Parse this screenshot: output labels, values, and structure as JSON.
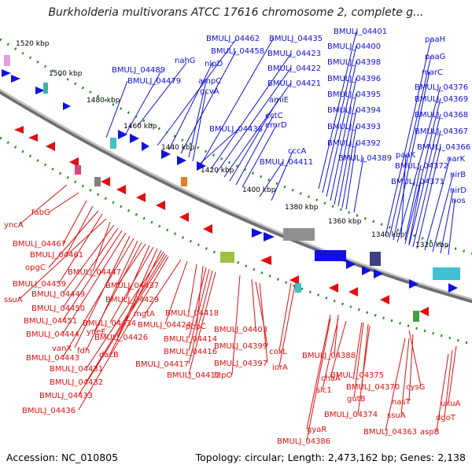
{
  "title": "Burkholderia multivorans ATCC 17616 chromosome 2, complete g...",
  "accession": "Accession: NC_010805",
  "summary": "Topology: circular; Length: 2,473,162 bp; Genes: 2,138",
  "colors": {
    "forward": "#1010e0",
    "reverse": "#e01010",
    "backbone": "#808080",
    "ruler": "#1a8a1a"
  },
  "kbp_ticks": [
    "1520 kbp",
    "1500 kbp",
    "1480 kbp",
    "1460 kbp",
    "1440 kbp",
    "1420 kbp",
    "1400 kbp",
    "1380 kbp",
    "1360 kbp",
    "1340 kbp",
    "1320 kbp"
  ],
  "forward_labels": [
    "nahG",
    "BMULJ_04489",
    "BMULJ_04479",
    "BMULJ_04462",
    "nlpD",
    "BMULJ_04458",
    "ampC",
    "gcvA",
    "BMULJ_04435",
    "BMULJ_04423",
    "BMULJ_04422",
    "BMULJ_04421",
    "amiE",
    "ectC",
    "emrD",
    "BMULJ_04438",
    "BMULJ_04411",
    "cccA",
    "BMULJ_04401",
    "BMULJ_04400",
    "BMULJ_04398",
    "BMULJ_04396",
    "BMULJ_04395",
    "BMULJ_04394",
    "BMULJ_04393",
    "BMULJ_04392",
    "BMULJ_04389",
    "paaH",
    "paaG",
    "marC",
    "BMULJ_04376",
    "BMULJ_04369",
    "BMULJ_04368",
    "BMULJ_04367",
    "BMULJ_04366",
    "paaK",
    "BMULJ_04372",
    "narK",
    "BMULJ_04371",
    "nirB",
    "nirD",
    "nos"
  ],
  "reverse_labels": [
    "yncA",
    "fabG",
    "BMULJ_04467",
    "BMULJ_04461",
    "opgC",
    "BMULJ_04459",
    "ssuA",
    "BMULJ_04447",
    "BMULJ_04449",
    "BMULJ_04450",
    "BMULJ_04451",
    "BMULJ_04444",
    "vanX",
    "BMULJ_04443",
    "fdh",
    "yneE",
    "BMULJ_04437",
    "BMULJ_04429",
    "BMULJ_04434",
    "BMULJ_04426",
    "dacB",
    "BMULJ_04431",
    "BMULJ_04432",
    "BMULJ_04433",
    "BMULJ_04436",
    "mgtA",
    "BMULJ_04424",
    "BMULJ_04418",
    "pbpC",
    "BMULJ_04414",
    "BMULJ_04416",
    "BMULJ_04417",
    "BMULJ_04412",
    "hipO",
    "BMULJ_04403",
    "BMULJ_04399",
    "BMULJ_04397",
    "coxL",
    "iorA",
    "BMULJ_04388",
    "slc1",
    "chaA",
    "BMULJ_04375",
    "BMULJ_04370",
    "gutB",
    "BMULJ_04374",
    "gyaR",
    "BMULJ_04386",
    "cysG",
    "nasT",
    "ssuA",
    "BMULJ_04363",
    "uxuA",
    "dgoT",
    "aspB"
  ]
}
